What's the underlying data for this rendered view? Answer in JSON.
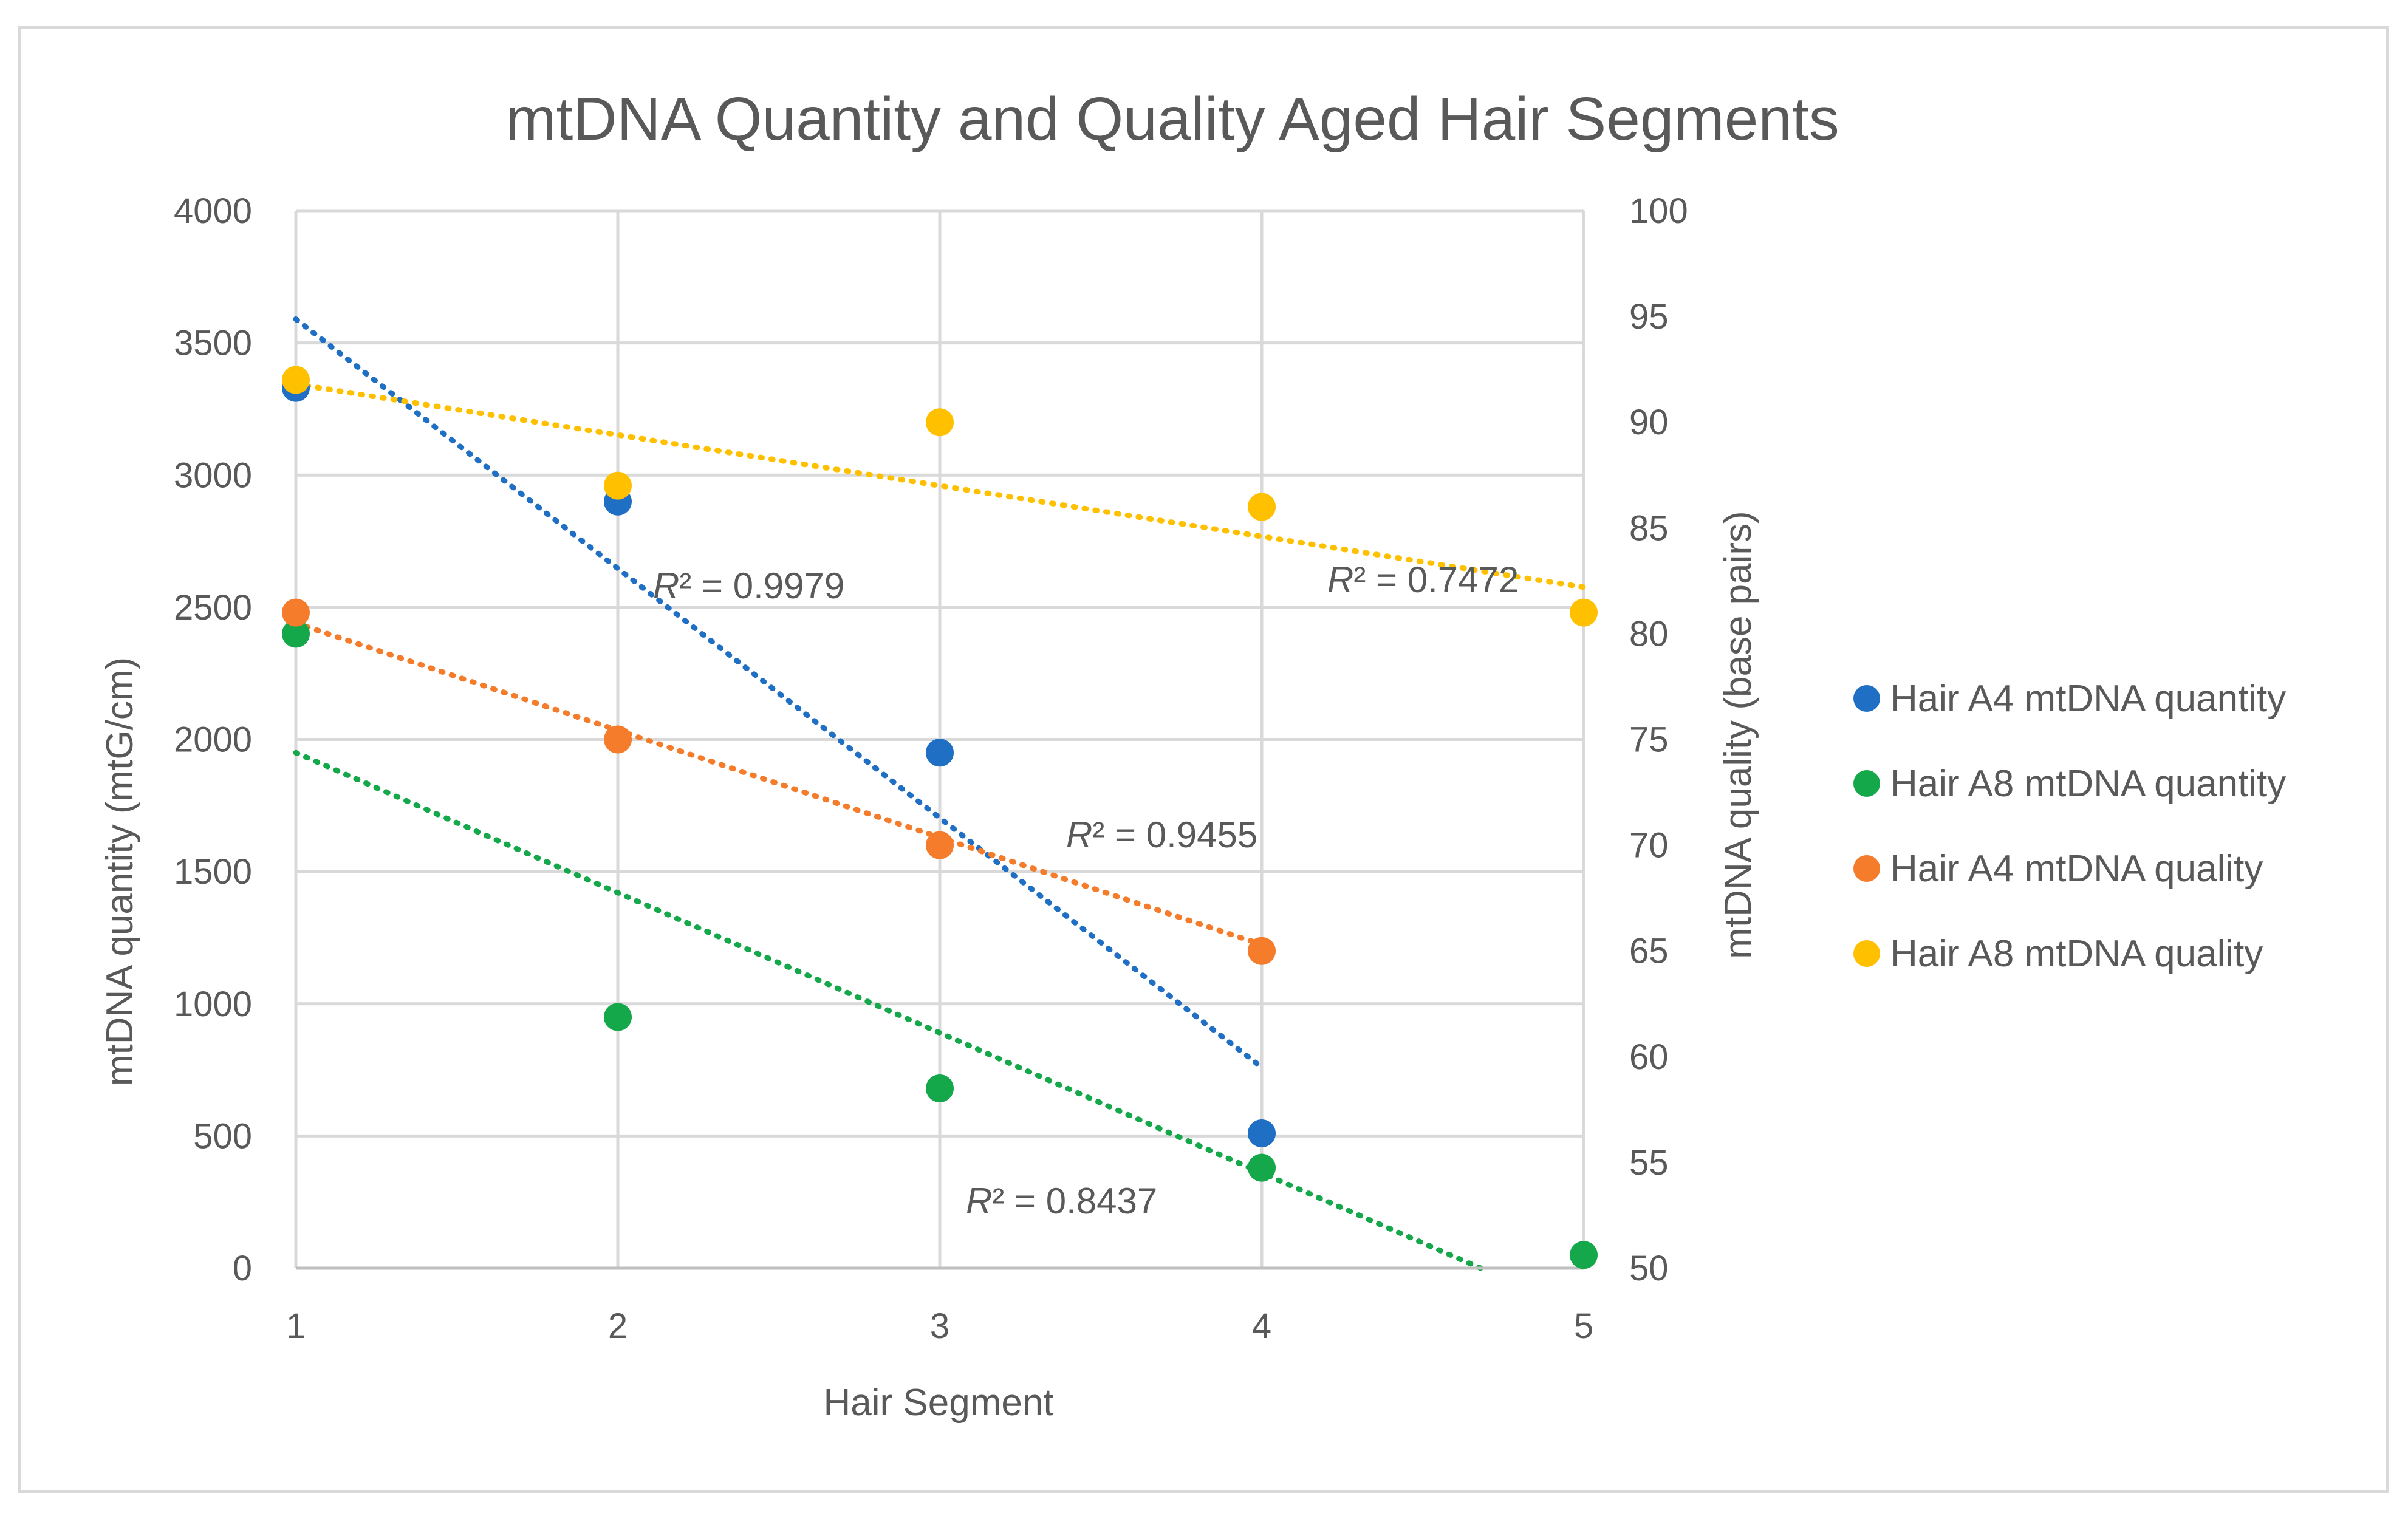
{
  "chart_data": {
    "type": "scatter",
    "title": "mtDNA Quantity and Quality Aged Hair Segments",
    "xlabel": "Hair Segment",
    "ylabel": "mtDNA quantity (mtG/cm)",
    "y2label": "mtDNA quality (base pairs)",
    "xlim": [
      1,
      5
    ],
    "ylim": [
      0,
      4000
    ],
    "y2lim": [
      50,
      100
    ],
    "x_ticks": [
      "1",
      "2",
      "3",
      "4",
      "5"
    ],
    "y_ticks": [
      "0",
      "500",
      "1000",
      "1500",
      "2000",
      "2500",
      "3000",
      "3500",
      "4000"
    ],
    "y2_ticks": [
      "50",
      "55",
      "60",
      "65",
      "70",
      "75",
      "80",
      "85",
      "90",
      "95",
      "100"
    ],
    "grid": true,
    "legend_position": "right",
    "series": [
      {
        "name": "Hair A4 mtDNA quantity",
        "axis": "left",
        "color": "#1f6fc4",
        "x": [
          1,
          2,
          3,
          4
        ],
        "values": [
          3330,
          2900,
          1950,
          510
        ],
        "trend": {
          "r2": "R² = 0.9979",
          "x_range": [
            1,
            4
          ],
          "y_start": 3590,
          "y_end": 760
        }
      },
      {
        "name": "Hair A8 mtDNA quantity",
        "axis": "left",
        "color": "#14a84a",
        "x": [
          1,
          2,
          3,
          4,
          5
        ],
        "values": [
          2400,
          950,
          680,
          380,
          50
        ],
        "trend": {
          "r2": "R² = 0.8437",
          "x_range": [
            1,
            4.68
          ],
          "y_start": 1950,
          "y_end": 0
        }
      },
      {
        "name": "Hair A4 mtDNA quality",
        "axis": "right",
        "color": "#f47c2b",
        "x": [
          1,
          2,
          3,
          4
        ],
        "values": [
          81,
          75,
          70,
          65
        ],
        "trend": {
          "r2": "R² = 0.9455",
          "x_range": [
            1,
            4
          ],
          "y_start": 80.5,
          "y_end": 65.3
        }
      },
      {
        "name": "Hair A8 mtDNA quality",
        "axis": "right",
        "color": "#ffc000",
        "x": [
          1,
          2,
          3,
          4,
          5
        ],
        "values": [
          92,
          87,
          90,
          86,
          81
        ],
        "trend": {
          "r2": "R² = 0.7472",
          "x_range": [
            1,
            5
          ],
          "y_start": 91.8,
          "y_end": 82.2
        }
      }
    ]
  }
}
